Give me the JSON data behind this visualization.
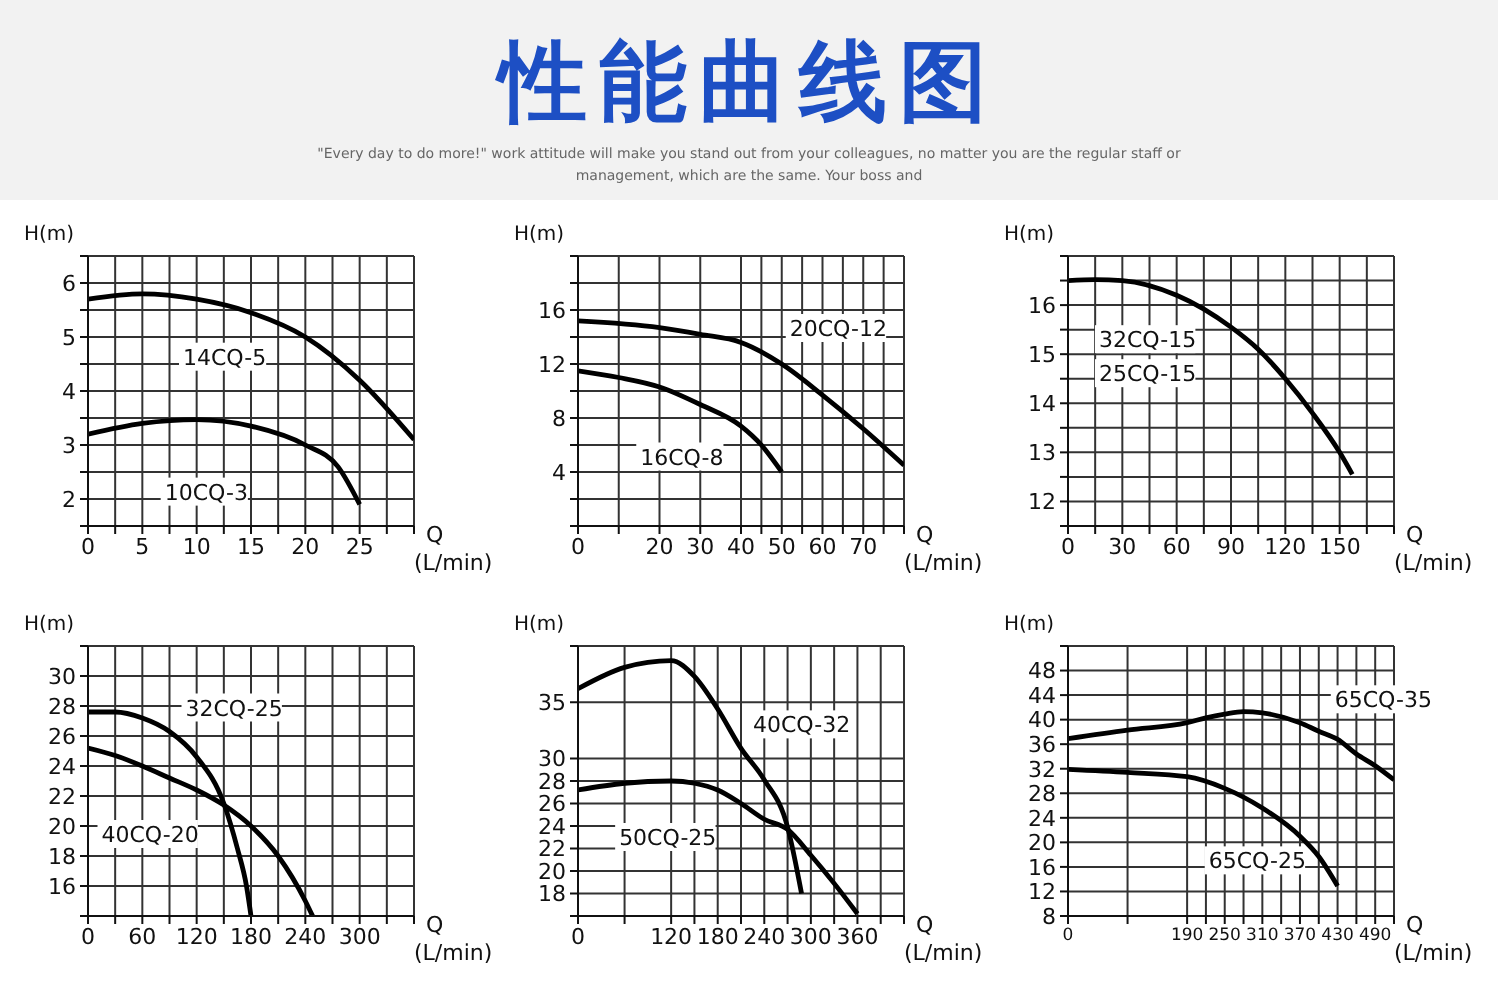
{
  "chart_data": [
    {
      "type": "other",
      "title": "性能曲线图",
      "subtitle": "\"Every day to do more!\" work attitude will make you stand out from your colleagues, no matter you are the regular staff or management, which are the same. Your boss and"
    },
    {
      "type": "line",
      "xlabel": "Q (L/min)",
      "ylabel": "H(m)",
      "grid": true,
      "xlim": [
        0,
        30
      ],
      "xticks": [
        0,
        {
          "value": 2.5,
          "label": null
        },
        5,
        {
          "value": 7.5,
          "label": null
        },
        10,
        {
          "value": 12.5,
          "label": null
        },
        15,
        {
          "value": 17.5,
          "label": null
        },
        20,
        {
          "value": 22.5,
          "label": null
        },
        25,
        {
          "value": 27.5,
          "label": null
        },
        {
          "value": 30,
          "label": null
        }
      ],
      "ylim": [
        1.5,
        6.5
      ],
      "yticks": [
        {
          "value": 1.5,
          "label": null
        },
        2,
        {
          "value": 2.5,
          "label": null
        },
        3,
        {
          "value": 3.5,
          "label": null
        },
        4,
        {
          "value": 4.5,
          "label": null
        },
        5,
        {
          "value": 5.5,
          "label": null
        },
        6,
        {
          "value": 6.5,
          "label": null
        }
      ],
      "series": [
        {
          "name": "14CQ-5",
          "color": "#000000",
          "x": [
            0,
            5,
            10,
            15,
            20,
            25,
            30
          ],
          "values": [
            5.7,
            5.8,
            5.7,
            5.45,
            5.0,
            4.2,
            3.1
          ]
        },
        {
          "name": "10CQ-3",
          "color": "#000000",
          "x": [
            0,
            5,
            10,
            15,
            20,
            23,
            25
          ],
          "values": [
            3.2,
            3.4,
            3.47,
            3.35,
            3.0,
            2.6,
            1.9
          ]
        }
      ]
    },
    {
      "type": "line",
      "xlabel": "Q (L/min)",
      "ylabel": "H(m)",
      "grid": true,
      "xlim": [
        0,
        80
      ],
      "xticks": [
        0,
        {
          "value": 10,
          "label": null
        },
        20,
        30,
        40,
        {
          "value": 45,
          "label": null
        },
        50,
        {
          "value": 55,
          "label": null
        },
        60,
        {
          "value": 65,
          "label": null
        },
        70,
        {
          "value": 75,
          "label": null
        },
        {
          "value": 80,
          "label": null
        }
      ],
      "ylim": [
        0,
        20
      ],
      "yticks": [
        {
          "value": 0,
          "label": null
        },
        {
          "value": 2,
          "label": null
        },
        4,
        {
          "value": 6,
          "label": null
        },
        8,
        {
          "value": 10,
          "label": null
        },
        12,
        {
          "value": 14,
          "label": null
        },
        16,
        {
          "value": 18,
          "label": null
        },
        {
          "value": 20,
          "label": null
        }
      ],
      "series": [
        {
          "name": "20CQ-12",
          "color": "#000000",
          "x": [
            0,
            20,
            30,
            40,
            50,
            60,
            70,
            80
          ],
          "values": [
            15.2,
            14.7,
            14.2,
            13.6,
            12.0,
            9.7,
            7.2,
            4.5
          ]
        },
        {
          "name": "16CQ-8",
          "color": "#000000",
          "x": [
            0,
            10,
            20,
            30,
            40,
            45,
            50
          ],
          "values": [
            11.5,
            11.0,
            10.3,
            9.0,
            7.4,
            6.0,
            4.0
          ]
        }
      ]
    },
    {
      "type": "line",
      "xlabel": "Q (L/min)",
      "ylabel": "H(m)",
      "grid": true,
      "annotations": [
        "25CQ-15"
      ],
      "xlim": [
        0,
        180
      ],
      "xticks": [
        0,
        {
          "value": 15,
          "label": null
        },
        30,
        {
          "value": 45,
          "label": null
        },
        60,
        {
          "value": 75,
          "label": null
        },
        90,
        {
          "value": 105,
          "label": null
        },
        120,
        {
          "value": 135,
          "label": null
        },
        150,
        {
          "value": 165,
          "label": null
        },
        {
          "value": 180,
          "label": null
        }
      ],
      "ylim": [
        11.5,
        17
      ],
      "yticks": [
        {
          "value": 11.5,
          "label": null
        },
        12,
        {
          "value": 12.5,
          "label": null
        },
        13,
        {
          "value": 13.5,
          "label": null
        },
        14,
        {
          "value": 14.5,
          "label": null
        },
        15,
        {
          "value": 15.5,
          "label": null
        },
        16,
        {
          "value": 16.5,
          "label": null
        },
        {
          "value": 17,
          "label": null
        }
      ],
      "series": [
        {
          "name": "32CQ-15",
          "color": "#000000",
          "x": [
            0,
            15,
            30,
            60,
            90,
            105,
            120,
            135,
            150,
            157
          ],
          "values": [
            16.5,
            16.52,
            16.5,
            16.2,
            15.55,
            15.1,
            14.5,
            13.8,
            13.0,
            12.55
          ]
        }
      ]
    },
    {
      "type": "line",
      "xlabel": "Q (L/min)",
      "ylabel": "H(m)",
      "grid": true,
      "xlim": [
        0,
        360
      ],
      "xticks": [
        0,
        {
          "value": 30,
          "label": null
        },
        60,
        {
          "value": 90,
          "label": null
        },
        120,
        {
          "value": 150,
          "label": null
        },
        180,
        {
          "value": 210,
          "label": null
        },
        240,
        {
          "value": 270,
          "label": null
        },
        300,
        {
          "value": 330,
          "label": null
        },
        {
          "value": 360,
          "label": null
        }
      ],
      "ylim": [
        14,
        32
      ],
      "yticks": [
        {
          "value": 14,
          "label": null
        },
        16,
        18,
        20,
        22,
        24,
        26,
        28,
        30,
        {
          "value": 32,
          "label": null
        }
      ],
      "series": [
        {
          "name": "32CQ-25",
          "color": "#000000",
          "x": [
            0,
            30,
            60,
            90,
            120,
            150,
            165,
            175,
            180
          ],
          "values": [
            27.6,
            27.6,
            27.2,
            26.3,
            24.6,
            21.5,
            18.5,
            16,
            14
          ]
        },
        {
          "name": "40CQ-20",
          "color": "#000000",
          "x": [
            0,
            30,
            60,
            90,
            120,
            150,
            180,
            210,
            240,
            248
          ],
          "values": [
            25.2,
            24.7,
            24.0,
            23.2,
            22.4,
            21.4,
            20.0,
            18.0,
            15,
            14
          ]
        }
      ]
    },
    {
      "type": "line",
      "xlabel": "Q (L/min)",
      "ylabel": "H(m)",
      "grid": true,
      "xlim": [
        0,
        420
      ],
      "xticks": [
        0,
        {
          "value": 60,
          "label": null
        },
        120,
        {
          "value": 150,
          "label": null
        },
        180,
        {
          "value": 210,
          "label": null
        },
        240,
        {
          "value": 270,
          "label": null
        },
        300,
        {
          "value": 330,
          "label": null
        },
        360,
        {
          "value": 390,
          "label": null
        },
        {
          "value": 420,
          "label": null
        }
      ],
      "ylim": [
        16,
        40
      ],
      "yticks": [
        {
          "value": 16,
          "label": null
        },
        18,
        20,
        22,
        24,
        26,
        28,
        30,
        35,
        {
          "value": 40,
          "label": null
        }
      ],
      "series": [
        {
          "name": "40CQ-32",
          "color": "#000000",
          "x": [
            0,
            60,
            120,
            150,
            180,
            210,
            240,
            270,
            288
          ],
          "values": [
            36.2,
            38.1,
            38.7,
            37.3,
            34.4,
            30.9,
            28.1,
            23.9,
            18
          ]
        },
        {
          "name": "50CQ-25",
          "color": "#000000",
          "x": [
            0,
            60,
            120,
            150,
            180,
            210,
            240,
            270,
            300,
            330,
            360
          ],
          "values": [
            27.2,
            27.8,
            28.0,
            27.8,
            27.2,
            26,
            24.6,
            23.7,
            21.4,
            18.9,
            16.2
          ]
        }
      ]
    },
    {
      "type": "line",
      "xlabel": "Q (L/min)",
      "ylabel": "H(m)",
      "grid": true,
      "xlim": [
        0,
        520
      ],
      "xticks": [
        0,
        {
          "value": 95,
          "label": null
        },
        190,
        {
          "value": 220,
          "label": null
        },
        250,
        {
          "value": 280,
          "label": null
        },
        310,
        {
          "value": 340,
          "label": null
        },
        370,
        {
          "value": 400,
          "label": null
        },
        430,
        {
          "value": 460,
          "label": null
        },
        490,
        {
          "value": 520,
          "label": null
        }
      ],
      "ylim": [
        8,
        52
      ],
      "yticks": [
        8,
        12,
        16,
        20,
        24,
        28,
        32,
        36,
        40,
        44,
        48,
        {
          "value": 52,
          "label": null
        }
      ],
      "series": [
        {
          "name": "65CQ-35",
          "color": "#000000",
          "x": [
            0,
            95,
            190,
            220,
            250,
            280,
            310,
            370,
            400,
            430,
            460,
            490,
            520
          ],
          "values": [
            36.9,
            38.3,
            39.5,
            40.3,
            40.9,
            41.3,
            41.1,
            39.5,
            38.1,
            36.8,
            34.4,
            32.5,
            30.2
          ]
        },
        {
          "name": "65CQ-25",
          "color": "#000000",
          "x": [
            0,
            95,
            190,
            250,
            310,
            370,
            400,
            430
          ],
          "values": [
            31.9,
            31.4,
            30.7,
            28.8,
            25.6,
            21.0,
            17.7,
            12.9
          ]
        }
      ]
    }
  ]
}
